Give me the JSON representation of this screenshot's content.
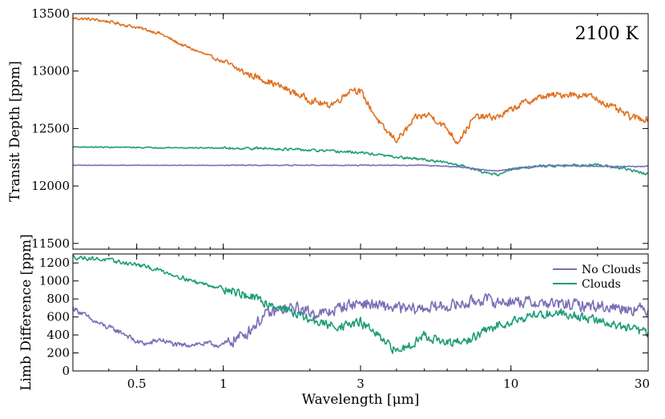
{
  "chart_data": [
    {
      "type": "line",
      "panel": "top",
      "annotation": "2100 K",
      "ylabel": "Transit Depth [ppm]",
      "xscale": "log",
      "xlim": [
        0.3,
        30
      ],
      "ylim": [
        11450,
        13500
      ],
      "yticks": [
        11500,
        12000,
        12500,
        13000,
        13500
      ],
      "yticklabels": [
        "11500",
        "12000",
        "12500",
        "13000",
        "13500"
      ],
      "series": [
        {
          "name": "Orange (no label)",
          "color": "#E07020",
          "noise": 40,
          "x": [
            0.3,
            0.35,
            0.4,
            0.5,
            0.6,
            0.7,
            0.8,
            1.0,
            1.2,
            1.4,
            1.6,
            1.8,
            2.0,
            2.3,
            2.5,
            2.8,
            3.0,
            3.3,
            3.6,
            4.0,
            4.3,
            4.7,
            5.2,
            6.0,
            6.5,
            7.5,
            9.0,
            11,
            13,
            16,
            19,
            22,
            26,
            30
          ],
          "y": [
            13460,
            13450,
            13430,
            13380,
            13330,
            13240,
            13180,
            13080,
            12980,
            12920,
            12860,
            12800,
            12750,
            12700,
            12740,
            12850,
            12820,
            12650,
            12500,
            12400,
            12480,
            12600,
            12620,
            12500,
            12380,
            12600,
            12600,
            12720,
            12780,
            12800,
            12780,
            12700,
            12600,
            12580
          ]
        },
        {
          "name": "Clouds",
          "color": "#1E9C78",
          "noise": 15,
          "x": [
            0.3,
            0.5,
            1.0,
            1.5,
            2.0,
            2.5,
            3.0,
            3.5,
            4.0,
            5.0,
            6.0,
            7.0,
            8.0,
            9.0,
            10,
            12,
            15,
            20,
            25,
            30
          ],
          "y": [
            12340,
            12335,
            12330,
            12325,
            12310,
            12300,
            12290,
            12270,
            12250,
            12230,
            12200,
            12170,
            12120,
            12100,
            12140,
            12170,
            12180,
            12180,
            12150,
            12100
          ]
        },
        {
          "name": "No Clouds",
          "color": "#7B6FB6",
          "noise": 6,
          "x": [
            0.3,
            0.5,
            1.0,
            2.0,
            3.0,
            4.0,
            5.0,
            6.0,
            7.0,
            8.0,
            9.0,
            10,
            12,
            15,
            20,
            30
          ],
          "y": [
            12180,
            12180,
            12180,
            12180,
            12180,
            12180,
            12180,
            12170,
            12160,
            12140,
            12130,
            12150,
            12170,
            12180,
            12170,
            12170
          ]
        }
      ]
    },
    {
      "type": "line",
      "panel": "bottom",
      "ylabel": "Limb Difference [ppm]",
      "xlabel": "Wavelength [μm]",
      "xscale": "log",
      "xlim": [
        0.3,
        30
      ],
      "ylim": [
        0,
        1300
      ],
      "yticks": [
        0,
        200,
        400,
        600,
        800,
        1000,
        1200
      ],
      "yticklabels": [
        "0",
        "200",
        "400",
        "600",
        "800",
        "1000",
        "1200"
      ],
      "xticks": [
        0.5,
        1,
        3,
        10,
        30
      ],
      "xticklabels": [
        "0.5",
        "1",
        "3",
        "10",
        "30"
      ],
      "legend": {
        "position": "top-right",
        "entries": [
          {
            "label": "No Clouds",
            "color": "#7B6FB6"
          },
          {
            "label": "Clouds",
            "color": "#1E9C78"
          }
        ]
      },
      "series": [
        {
          "name": "No Clouds",
          "color": "#7B6FB6",
          "noise": 90,
          "x": [
            0.3,
            0.32,
            0.35,
            0.4,
            0.45,
            0.5,
            0.55,
            0.6,
            0.7,
            0.8,
            0.9,
            1.0,
            1.2,
            1.4,
            1.6,
            1.8,
            2.0,
            2.3,
            2.6,
            3.0,
            3.5,
            4.0,
            4.5,
            5.0,
            6.0,
            7.0,
            8.0,
            9.0,
            10,
            12,
            15,
            20,
            25,
            30
          ],
          "y": [
            700,
            650,
            560,
            480,
            420,
            320,
            300,
            350,
            280,
            300,
            300,
            280,
            420,
            620,
            680,
            700,
            650,
            640,
            720,
            760,
            720,
            700,
            680,
            700,
            720,
            750,
            800,
            760,
            780,
            760,
            740,
            720,
            700,
            680
          ]
        },
        {
          "name": "Clouds",
          "color": "#1E9C78",
          "noise": 70,
          "x": [
            0.3,
            0.35,
            0.4,
            0.5,
            0.6,
            0.7,
            0.8,
            1.0,
            1.2,
            1.4,
            1.6,
            1.8,
            2.0,
            2.3,
            2.6,
            3.0,
            3.3,
            3.6,
            4.0,
            4.5,
            5.0,
            6.0,
            7.0,
            8.0,
            9.0,
            10,
            12,
            15,
            20,
            25,
            30
          ],
          "y": [
            1265,
            1250,
            1230,
            1180,
            1120,
            1050,
            990,
            920,
            840,
            760,
            700,
            630,
            570,
            510,
            500,
            540,
            450,
            320,
            220,
            300,
            400,
            300,
            330,
            430,
            500,
            560,
            620,
            650,
            560,
            480,
            420
          ]
        }
      ]
    }
  ]
}
